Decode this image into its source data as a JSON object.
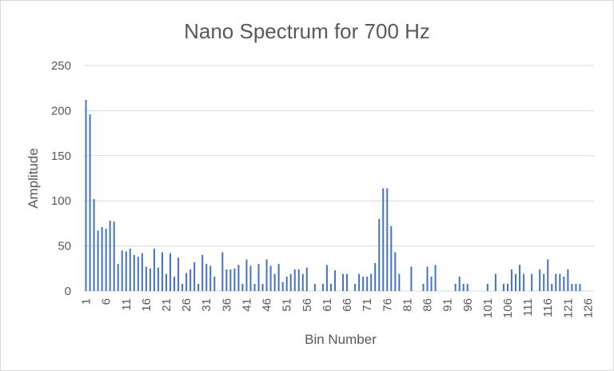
{
  "chart_data": {
    "type": "bar",
    "title": "Nano Spectrum for 700 Hz",
    "xlabel": "Bin Number",
    "ylabel": "Amplitude",
    "ylim": [
      0,
      250
    ],
    "yticks": [
      0,
      50,
      100,
      150,
      200,
      250
    ],
    "x_tick_labels": [
      "1",
      "6",
      "11",
      "16",
      "21",
      "26",
      "31",
      "36",
      "41",
      "46",
      "51",
      "56",
      "61",
      "66",
      "71",
      "76",
      "81",
      "86",
      "91",
      "96",
      "101",
      "106",
      "111",
      "116",
      "121",
      "126"
    ],
    "grid": true,
    "legend": "none",
    "bar_color": "#4472c4",
    "categories": [
      1,
      2,
      3,
      4,
      5,
      6,
      7,
      8,
      9,
      10,
      11,
      12,
      13,
      14,
      15,
      16,
      17,
      18,
      19,
      20,
      21,
      22,
      23,
      24,
      25,
      26,
      27,
      28,
      29,
      30,
      31,
      32,
      33,
      34,
      35,
      36,
      37,
      38,
      39,
      40,
      41,
      42,
      43,
      44,
      45,
      46,
      47,
      48,
      49,
      50,
      51,
      52,
      53,
      54,
      55,
      56,
      57,
      58,
      59,
      60,
      61,
      62,
      63,
      64,
      65,
      66,
      67,
      68,
      69,
      70,
      71,
      72,
      73,
      74,
      75,
      76,
      77,
      78,
      79,
      80,
      81,
      82,
      83,
      84,
      85,
      86,
      87,
      88,
      89,
      90,
      91,
      92,
      93,
      94,
      95,
      96,
      97,
      98,
      99,
      100,
      101,
      102,
      103,
      104,
      105,
      106,
      107,
      108,
      109,
      110,
      111,
      112,
      113,
      114,
      115,
      116,
      117,
      118,
      119,
      120,
      121,
      122,
      123,
      124,
      125,
      126,
      127
    ],
    "values": [
      212,
      196,
      102,
      67,
      71,
      69,
      78,
      77,
      30,
      45,
      44,
      47,
      40,
      38,
      42,
      27,
      25,
      47,
      26,
      43,
      19,
      42,
      16,
      37,
      8,
      20,
      24,
      32,
      8,
      40,
      30,
      28,
      16,
      0,
      43,
      24,
      24,
      25,
      29,
      8,
      35,
      28,
      8,
      30,
      8,
      35,
      28,
      19,
      30,
      10,
      16,
      19,
      24,
      24,
      19,
      26,
      0,
      8,
      0,
      8,
      29,
      8,
      23,
      0,
      19,
      19,
      0,
      8,
      19,
      16,
      16,
      19,
      31,
      80,
      114,
      114,
      72,
      43,
      19,
      0,
      0,
      27,
      0,
      0,
      8,
      27,
      16,
      29,
      0,
      0,
      0,
      0,
      8,
      16,
      8,
      8,
      0,
      0,
      0,
      0,
      8,
      0,
      19,
      0,
      8,
      8,
      24,
      19,
      29,
      19,
      0,
      19,
      0,
      24,
      19,
      35,
      8,
      19,
      19,
      16,
      24,
      8,
      8,
      8,
      0,
      0,
      0
    ]
  }
}
